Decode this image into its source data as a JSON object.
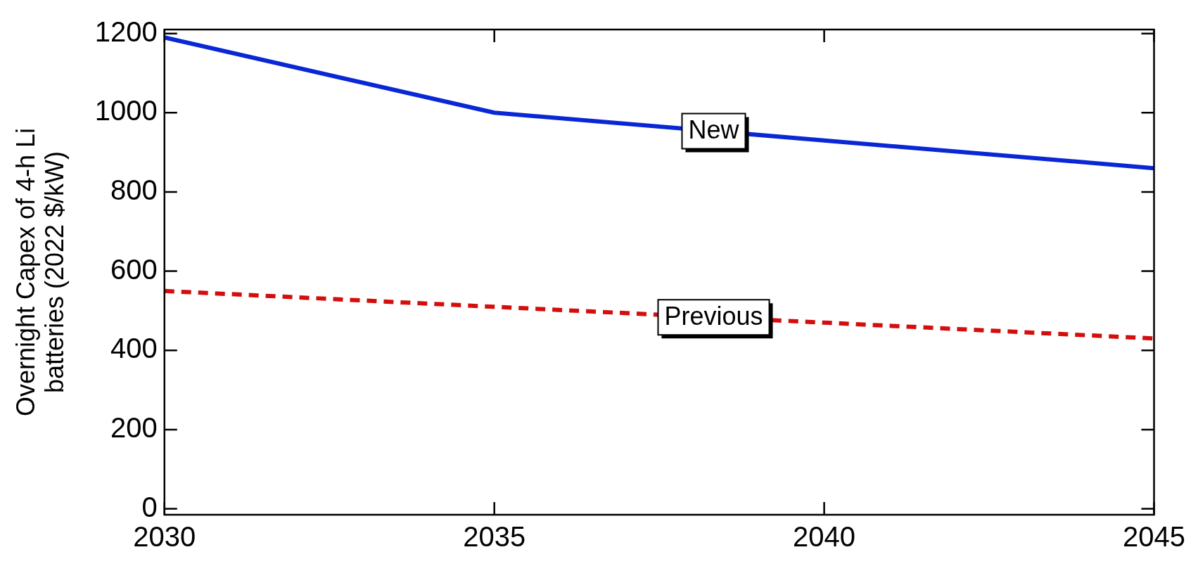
{
  "chart_data": {
    "type": "line",
    "ylabel": "Overnight Capex of 4-h Li batteries (2022 $/kW)",
    "x": [
      2030,
      2035,
      2040,
      2045
    ],
    "series": [
      {
        "name": "New",
        "color": "#0a27d6",
        "values": [
          1190,
          1000,
          930,
          860
        ],
        "line_style": "solid"
      },
      {
        "name": "Previous",
        "color": "#d40d0d",
        "values": [
          550,
          510,
          470,
          430
        ],
        "line_style": "dashed"
      }
    ],
    "xlim": [
      2030,
      2045
    ],
    "xticks": [
      2030,
      2035,
      2040,
      2045
    ],
    "ylim": [
      -15,
      1210
    ],
    "yticks": [
      0,
      200,
      400,
      600,
      800,
      1000,
      1200
    ],
    "grid": false,
    "legend": false,
    "marker": "none"
  }
}
